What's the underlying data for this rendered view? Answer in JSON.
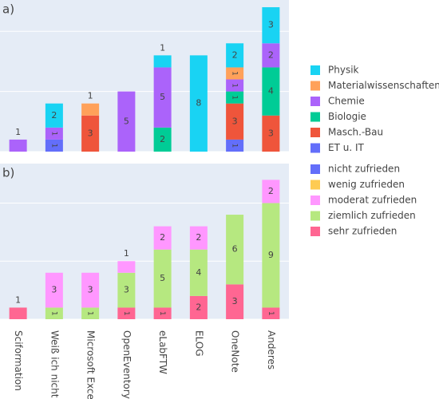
{
  "chart_data": [
    {
      "type": "bar",
      "barmode": "stack",
      "title": "a)",
      "ylim": [
        0,
        12.6
      ],
      "yticks": [
        0,
        5,
        10
      ],
      "grid": true,
      "series": [
        {
          "name": "ET u. IT",
          "color": "#636efa",
          "values": [
            0,
            1,
            0,
            0,
            0,
            0,
            1,
            0
          ]
        },
        {
          "name": "Masch.-Bau",
          "color": "#ef553b",
          "values": [
            0,
            0,
            3,
            0,
            0,
            0,
            3,
            3
          ]
        },
        {
          "name": "Biologie",
          "color": "#00cc96",
          "values": [
            0,
            0,
            0,
            0,
            2,
            0,
            1,
            4
          ]
        },
        {
          "name": "Chemie",
          "color": "#ab63fa",
          "values": [
            1,
            1,
            0,
            5,
            5,
            0,
            1,
            2
          ]
        },
        {
          "name": "Materialwissenschaften",
          "color": "#ffa15a",
          "values": [
            0,
            0,
            1,
            0,
            0,
            0,
            1,
            0
          ]
        },
        {
          "name": "Physik",
          "color": "#19d3f3",
          "values": [
            0,
            2,
            0,
            0,
            1,
            8,
            2,
            3
          ]
        }
      ]
    },
    {
      "type": "bar",
      "barmode": "stack",
      "title": "b)",
      "ylim": [
        0,
        13.4
      ],
      "yticks": [
        0,
        5,
        10
      ],
      "grid": true,
      "categories": [
        "Sciformation",
        "Weiß ich nicht",
        "Microsoft Excel",
        "OpenEventory",
        "eLabFTW",
        "ELOG",
        "OneNote",
        "Anderes"
      ],
      "series": [
        {
          "name": "sehr zufrieden",
          "color": "#ff6692",
          "values": [
            1,
            0,
            0,
            1,
            1,
            2,
            3,
            1
          ]
        },
        {
          "name": "ziemlich zufrieden",
          "color": "#b6e880",
          "values": [
            0,
            1,
            1,
            3,
            5,
            4,
            6,
            9
          ]
        },
        {
          "name": "moderat zufrieden",
          "color": "#ff97ff",
          "values": [
            0,
            3,
            3,
            1,
            2,
            2,
            0,
            2
          ]
        },
        {
          "name": "wenig zufrieden",
          "color": "#fecb52",
          "values": [
            0,
            0,
            0,
            0,
            0,
            0,
            0,
            0
          ]
        },
        {
          "name": "nicht zufrieden",
          "color": "#636efa",
          "values": [
            0,
            0,
            0,
            0,
            0,
            0,
            0,
            0
          ]
        }
      ]
    }
  ]
}
